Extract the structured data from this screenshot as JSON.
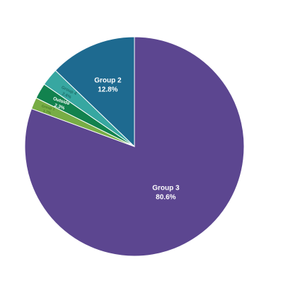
{
  "chart_data": {
    "type": "pie",
    "slices": [
      {
        "name": "Group 3",
        "value": 80.6,
        "label": "Group 3",
        "pct_label": "80.6%",
        "color": "#5c4690",
        "label_color": "#ffffff"
      },
      {
        "name": "Group 1",
        "value": 1.7,
        "label": "Group 1",
        "pct_label": "1.7%",
        "color": "#78ad45",
        "label_color": "#4d7f2a"
      },
      {
        "name": "Outside",
        "value": 2.3,
        "label": "Outside",
        "pct_label": "2.3%",
        "color": "#12824e",
        "label_color": "#ffffff"
      },
      {
        "name": "Group 4",
        "value": 2.6,
        "label": "Group 4",
        "pct_label": "2.6%",
        "color": "#37a7a1",
        "label_color": "#1d6f6a"
      },
      {
        "name": "Group 2",
        "value": 12.8,
        "label": "Group 2",
        "pct_label": "12.8%",
        "color": "#1e6a90",
        "label_color": "#ffffff"
      }
    ],
    "start": "12 o'clock",
    "direction": "clockwise",
    "legend": "none",
    "title": ""
  }
}
